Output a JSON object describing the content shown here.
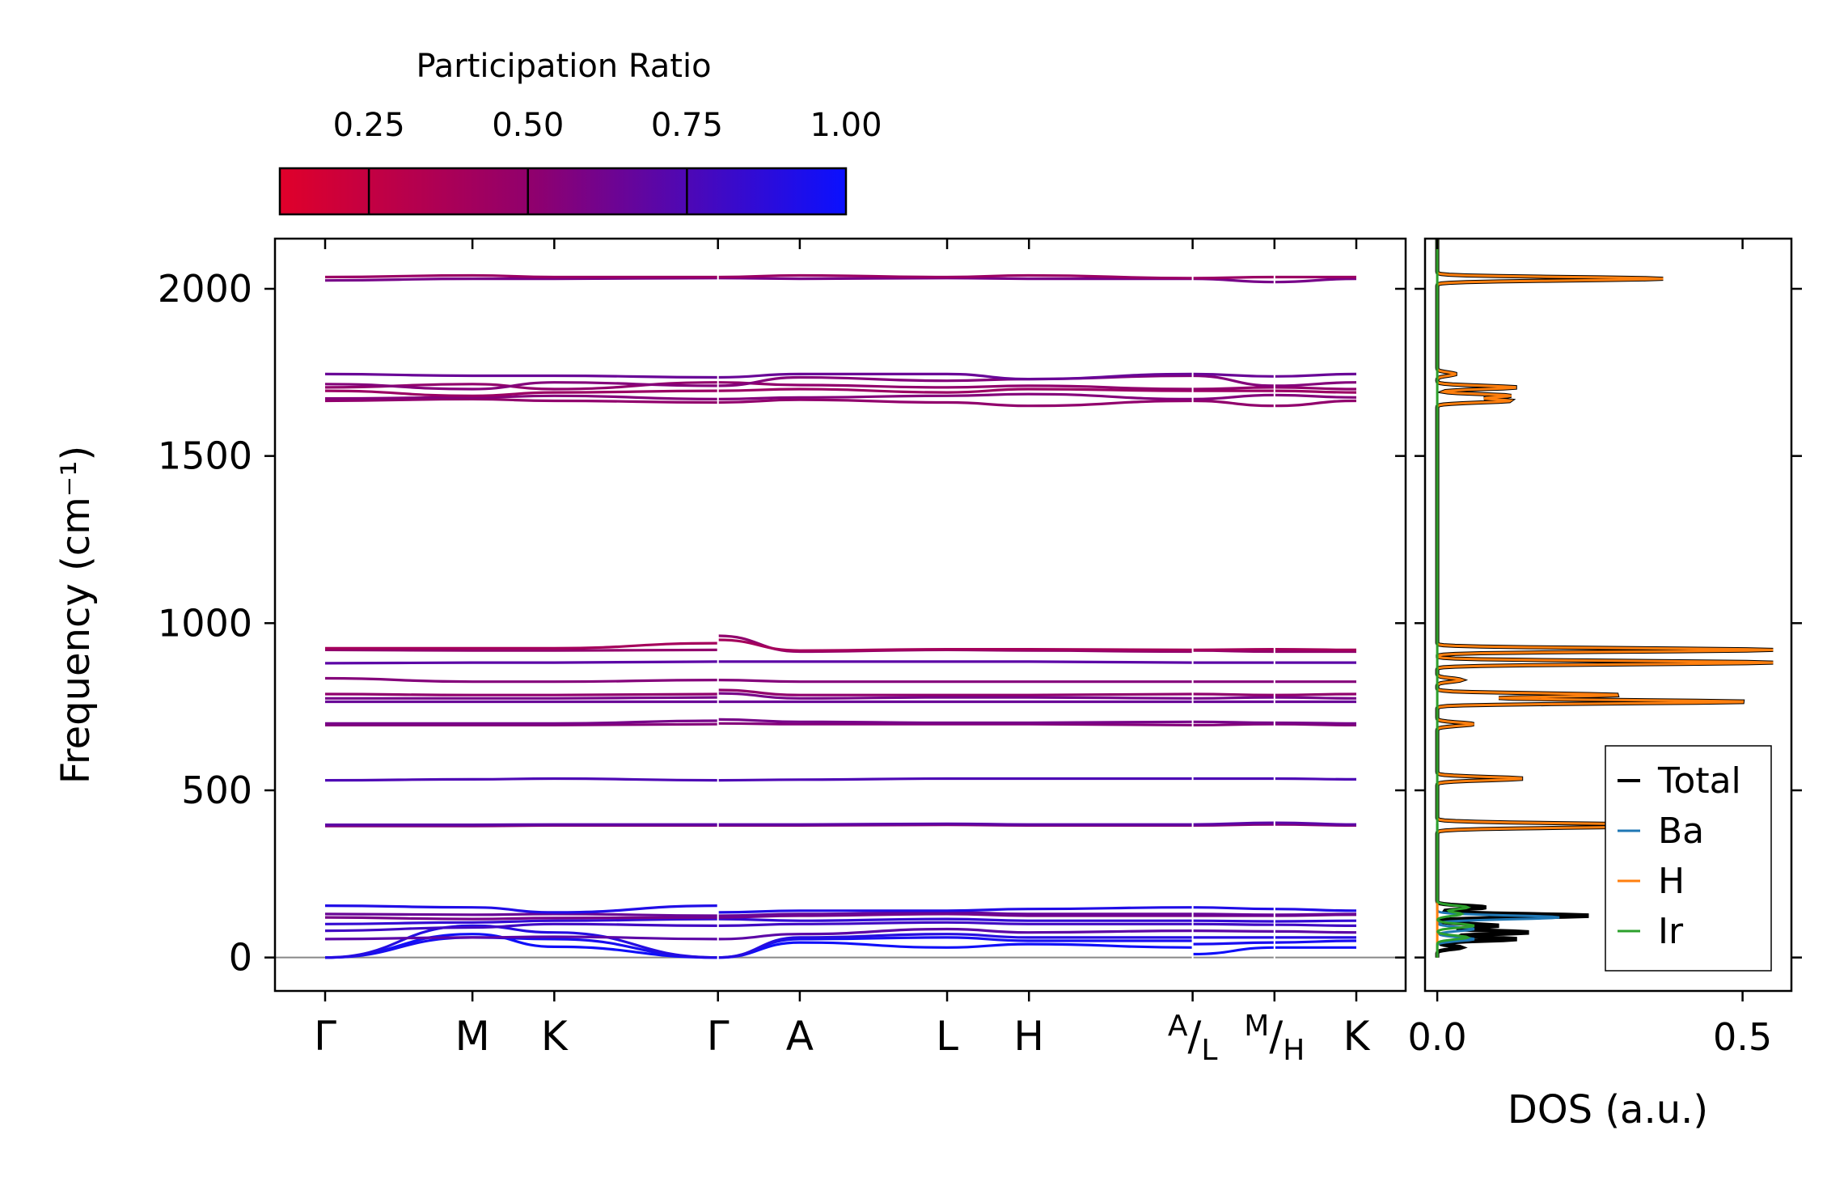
{
  "colorbar": {
    "title": "Participation Ratio",
    "ticks": [
      0.25,
      0.5,
      0.75,
      1.0
    ],
    "tick_labels": [
      "0.25",
      "0.50",
      "0.75",
      "1.00"
    ],
    "range": [
      0.11,
      1.0
    ],
    "low_color": "#e0002a",
    "high_color": "#0a10ff"
  },
  "band_panel": {
    "ylabel": "Frequency (cm⁻¹)",
    "ylim": [
      -100,
      2150
    ],
    "yticks": [
      0,
      500,
      1000,
      1500,
      2000
    ],
    "ytick_labels": [
      "0",
      "500",
      "1000",
      "1500",
      "2000"
    ],
    "kpath": [
      {
        "label": "Γ",
        "pos": 0
      },
      {
        "label": "M",
        "pos": 1.8
      },
      {
        "label": "K",
        "pos": 2.8
      },
      {
        "label": "Γ",
        "pos": 4.8
      },
      {
        "label": "A",
        "pos": 5.8
      },
      {
        "label": "L",
        "pos": 7.6
      },
      {
        "label": "H",
        "pos": 8.6
      },
      {
        "label_top": "A",
        "label_bottom": "L",
        "pos": 10.6
      },
      {
        "label_top": "M",
        "label_bottom": "H",
        "pos": 11.6
      },
      {
        "label": "K",
        "pos": 12.6
      }
    ],
    "breaks": [
      4.8,
      10.6,
      11.6
    ]
  },
  "chart_data": {
    "type": "line",
    "title": "",
    "xlabel": "",
    "ylabel": "Frequency (cm⁻¹)",
    "ylim": [
      -100,
      2150
    ],
    "bands": [
      {
        "name": "acoustic-1",
        "segments": [
          [
            0,
            70,
            32,
            0
          ],
          [
            0,
            45,
            30,
            40,
            30
          ],
          [
            10,
            30
          ],
          [
            30,
            30
          ]
        ],
        "pr": 0.98
      },
      {
        "name": "acoustic-2",
        "segments": [
          [
            0,
            60,
            55,
            0
          ],
          [
            0,
            55,
            60,
            50,
            50
          ],
          [
            40,
            45
          ],
          [
            45,
            50
          ]
        ],
        "pr": 0.95
      },
      {
        "name": "acoustic-3",
        "segments": [
          [
            0,
            95,
            75,
            0
          ],
          [
            0,
            60,
            70,
            60,
            60
          ],
          [
            60,
            60
          ],
          [
            60,
            60
          ]
        ],
        "pr": 0.9
      },
      {
        "name": "lowopt-1",
        "segments": [
          [
            55,
            60,
            62,
            55
          ],
          [
            55,
            70,
            85,
            75,
            80
          ],
          [
            80,
            78
          ],
          [
            78,
            75
          ]
        ],
        "pr": 0.7
      },
      {
        "name": "lowopt-2",
        "segments": [
          [
            80,
            90,
            100,
            95
          ],
          [
            95,
            100,
            105,
            100,
            100
          ],
          [
            100,
            98
          ],
          [
            98,
            95
          ]
        ],
        "pr": 0.8
      },
      {
        "name": "lowopt-3",
        "segments": [
          [
            100,
            105,
            110,
            115
          ],
          [
            115,
            110,
            115,
            110,
            110
          ],
          [
            110,
            108
          ],
          [
            108,
            110
          ]
        ],
        "pr": 0.85
      },
      {
        "name": "lowopt-4",
        "segments": [
          [
            120,
            115,
            118,
            120
          ],
          [
            120,
            125,
            130,
            125,
            125
          ],
          [
            125,
            125
          ],
          [
            125,
            128
          ]
        ],
        "pr": 0.6
      },
      {
        "name": "lowopt-5",
        "segments": [
          [
            130,
            128,
            130,
            125
          ],
          [
            125,
            130,
            135,
            130,
            130
          ],
          [
            130,
            128
          ],
          [
            128,
            130
          ]
        ],
        "pr": 0.65
      },
      {
        "name": "lowopt-6",
        "segments": [
          [
            155,
            150,
            135,
            155
          ],
          [
            135,
            140,
            140,
            145,
            150
          ],
          [
            150,
            145
          ],
          [
            145,
            140
          ]
        ],
        "pr": 0.92
      },
      {
        "name": "b390",
        "segments": [
          [
            393,
            393,
            395,
            395
          ],
          [
            395,
            395,
            397,
            395,
            395
          ],
          [
            395,
            398
          ],
          [
            398,
            395
          ]
        ],
        "pr": 0.55
      },
      {
        "name": "b400",
        "segments": [
          [
            397,
            397,
            398,
            398
          ],
          [
            398,
            398,
            400,
            398,
            398
          ],
          [
            398,
            403
          ],
          [
            403,
            398
          ]
        ],
        "pr": 0.7
      },
      {
        "name": "b530",
        "segments": [
          [
            530,
            533,
            535,
            530
          ],
          [
            530,
            532,
            535,
            535,
            535
          ],
          [
            535,
            535
          ],
          [
            535,
            533
          ]
        ],
        "pr": 0.75
      },
      {
        "name": "b695",
        "segments": [
          [
            695,
            695,
            695,
            698
          ],
          [
            700,
            698,
            698,
            698,
            695
          ],
          [
            695,
            698
          ],
          [
            698,
            695
          ]
        ],
        "pr": 0.55
      },
      {
        "name": "b705",
        "segments": [
          [
            700,
            700,
            700,
            708
          ],
          [
            712,
            705,
            702,
            702,
            705
          ],
          [
            705,
            702
          ],
          [
            702,
            700
          ]
        ],
        "pr": 0.6
      },
      {
        "name": "b760",
        "segments": [
          [
            765,
            765,
            765,
            765
          ],
          [
            765,
            765,
            765,
            765,
            765
          ],
          [
            765,
            765
          ],
          [
            765,
            765
          ]
        ],
        "pr": 0.65
      },
      {
        "name": "b775",
        "segments": [
          [
            775,
            775,
            775,
            778
          ],
          [
            790,
            775,
            778,
            778,
            775
          ],
          [
            775,
            778
          ],
          [
            778,
            775
          ]
        ],
        "pr": 0.6
      },
      {
        "name": "b790",
        "segments": [
          [
            788,
            785,
            785,
            788
          ],
          [
            800,
            785,
            785,
            785,
            788
          ],
          [
            788,
            785
          ],
          [
            785,
            788
          ]
        ],
        "pr": 0.5
      },
      {
        "name": "b825",
        "segments": [
          [
            835,
            825,
            825,
            830
          ],
          [
            830,
            825,
            825,
            825,
            825
          ],
          [
            825,
            825
          ],
          [
            825,
            825
          ]
        ],
        "pr": 0.55
      },
      {
        "name": "b880",
        "segments": [
          [
            880,
            882,
            882,
            885
          ],
          [
            885,
            885,
            885,
            885,
            882
          ],
          [
            882,
            882
          ],
          [
            882,
            882
          ]
        ],
        "pr": 0.7
      },
      {
        "name": "b915",
        "segments": [
          [
            920,
            918,
            918,
            920
          ],
          [
            962,
            915,
            920,
            918,
            915
          ],
          [
            918,
            915
          ],
          [
            915,
            915
          ]
        ],
        "pr": 0.5
      },
      {
        "name": "b925",
        "segments": [
          [
            925,
            925,
            925,
            940
          ],
          [
            950,
            918,
            922,
            922,
            920
          ],
          [
            920,
            922
          ],
          [
            922,
            920
          ]
        ],
        "pr": 0.4
      },
      {
        "name": "b1655",
        "segments": [
          [
            1665,
            1670,
            1665,
            1660
          ],
          [
            1660,
            1668,
            1660,
            1650,
            1665
          ],
          [
            1665,
            1650
          ],
          [
            1650,
            1665
          ]
        ],
        "pr": 0.5
      },
      {
        "name": "b1670",
        "segments": [
          [
            1672,
            1675,
            1680,
            1670
          ],
          [
            1670,
            1675,
            1680,
            1685,
            1670
          ],
          [
            1670,
            1682
          ],
          [
            1682,
            1675
          ]
        ],
        "pr": 0.55
      },
      {
        "name": "b1690",
        "segments": [
          [
            1695,
            1680,
            1690,
            1695
          ],
          [
            1695,
            1700,
            1690,
            1700,
            1695
          ],
          [
            1695,
            1695
          ],
          [
            1695,
            1690
          ]
        ],
        "pr": 0.45
      },
      {
        "name": "b1705",
        "segments": [
          [
            1705,
            1715,
            1700,
            1720
          ],
          [
            1720,
            1712,
            1705,
            1710,
            1700
          ],
          [
            1700,
            1705
          ],
          [
            1705,
            1700
          ]
        ],
        "pr": 0.5
      },
      {
        "name": "b1720",
        "segments": [
          [
            1715,
            1700,
            1720,
            1710
          ],
          [
            1710,
            1735,
            1725,
            1730,
            1740
          ],
          [
            1740,
            1710
          ],
          [
            1710,
            1720
          ]
        ],
        "pr": 0.55
      },
      {
        "name": "b1745",
        "segments": [
          [
            1745,
            1740,
            1740,
            1735
          ],
          [
            1735,
            1745,
            1745,
            1730,
            1745
          ],
          [
            1745,
            1738
          ],
          [
            1738,
            1745
          ]
        ],
        "pr": 0.65
      },
      {
        "name": "b2025",
        "segments": [
          [
            2025,
            2030,
            2030,
            2032
          ],
          [
            2032,
            2030,
            2032,
            2030,
            2030
          ],
          [
            2030,
            2020
          ],
          [
            2020,
            2030
          ]
        ],
        "pr": 0.6
      },
      {
        "name": "b2035",
        "segments": [
          [
            2035,
            2040,
            2035,
            2035
          ],
          [
            2035,
            2040,
            2035,
            2040,
            2032
          ],
          [
            2032,
            2035
          ],
          [
            2035,
            2035
          ]
        ],
        "pr": 0.45
      }
    ]
  },
  "dos_panel": {
    "xlabel": "DOS (a.u.)",
    "xlim": [
      -0.02,
      0.58
    ],
    "xticks": [
      0.0,
      0.5
    ],
    "xtick_labels": [
      "0.0",
      "0.5"
    ],
    "legend": [
      {
        "label": "Total",
        "color": "#000000"
      },
      {
        "label": "Ba",
        "color": "#1f77b4"
      },
      {
        "label": "H",
        "color": "#ff7f0e"
      },
      {
        "label": "Ir",
        "color": "#2ca02c"
      }
    ],
    "h_peaks": [
      [
        392,
        0.25
      ],
      [
        398,
        0.22
      ],
      [
        535,
        0.14
      ],
      [
        698,
        0.06
      ],
      [
        765,
        0.51
      ],
      [
        785,
        0.3
      ],
      [
        830,
        0.04
      ],
      [
        882,
        0.55
      ],
      [
        920,
        0.55
      ],
      [
        1665,
        0.12
      ],
      [
        1680,
        0.12
      ],
      [
        1705,
        0.13
      ],
      [
        1745,
        0.03
      ],
      [
        2030,
        0.37
      ]
    ],
    "total_low_peaks": [
      [
        30,
        0.04
      ],
      [
        55,
        0.13
      ],
      [
        75,
        0.15
      ],
      [
        95,
        0.1
      ],
      [
        125,
        0.25
      ],
      [
        150,
        0.08
      ]
    ],
    "ba_low_peaks": [
      [
        55,
        0.06
      ],
      [
        85,
        0.06
      ],
      [
        120,
        0.2
      ]
    ],
    "ir_low_peaks": [
      [
        60,
        0.05
      ],
      [
        95,
        0.06
      ],
      [
        130,
        0.04
      ],
      [
        150,
        0.05
      ]
    ]
  }
}
